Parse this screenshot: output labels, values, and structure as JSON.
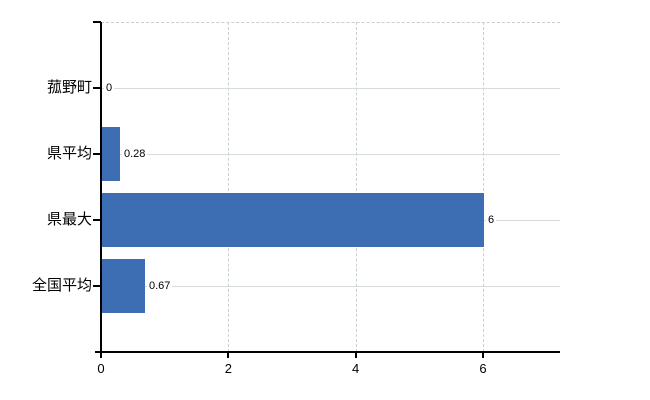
{
  "chart_data": {
    "type": "bar",
    "orientation": "horizontal",
    "title": "",
    "xlabel": "",
    "ylabel": "",
    "categories": [
      "菰野町",
      "県平均",
      "県最大",
      "全国平均"
    ],
    "values": [
      0,
      0.28,
      6,
      0.67
    ],
    "value_labels": [
      "0",
      "0.28",
      "6",
      "0.67"
    ],
    "x_tick_labels": [
      "0",
      "2",
      "4",
      "6"
    ],
    "x_tick_values": [
      0,
      2,
      4,
      6
    ],
    "xlim": [
      0,
      7.2
    ],
    "grid": true,
    "legend": null,
    "colors": {
      "bar": "#3d6db3",
      "axis": "#000000",
      "gridline_horizontal": "#d6dcd6",
      "gridline_vertical": "#c8d1c8",
      "background": "#ffffff",
      "text": "#000000"
    }
  }
}
